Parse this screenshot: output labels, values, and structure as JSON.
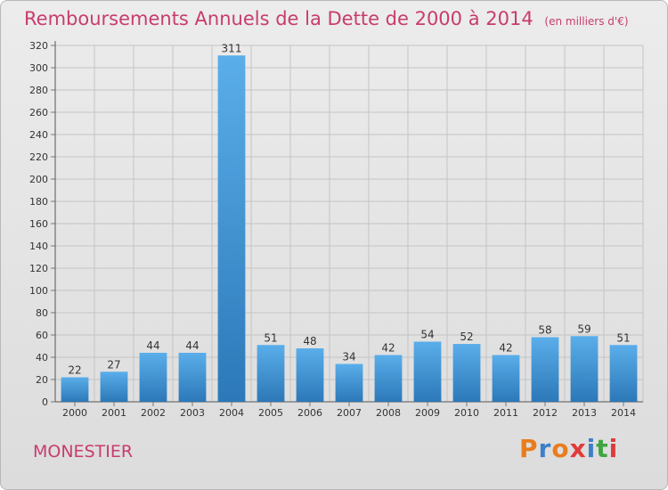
{
  "title": "Remboursements Annuels de la Dette de 2000 à 2014",
  "unit": "(en milliers d'€)",
  "commune": "MONESTIER",
  "logo": {
    "text": "Proxiti",
    "letter_colors": [
      "#e87d1e",
      "#3d7fc9",
      "#e87d1e",
      "#e03a3a",
      "#3d7fc9",
      "#3fa63f",
      "#e03a3a"
    ]
  },
  "colors": {
    "title": "#c83c6e",
    "bar_top": "#5aaeea",
    "bar_bottom": "#2c78b8"
  },
  "chart_data": {
    "type": "bar",
    "categories": [
      "2000",
      "2001",
      "2002",
      "2003",
      "2004",
      "2005",
      "2006",
      "2007",
      "2008",
      "2009",
      "2010",
      "2011",
      "2012",
      "2013",
      "2014"
    ],
    "values": [
      22,
      27,
      44,
      44,
      311,
      51,
      48,
      34,
      42,
      54,
      52,
      42,
      58,
      59,
      51
    ],
    "title": "Remboursements Annuels de la Dette de 2000 à 2014",
    "ylim": [
      0,
      320
    ],
    "yticks": [
      0,
      20,
      40,
      60,
      80,
      100,
      120,
      140,
      160,
      180,
      200,
      220,
      240,
      260,
      280,
      300,
      320
    ],
    "grid": true,
    "data_labels": true
  }
}
